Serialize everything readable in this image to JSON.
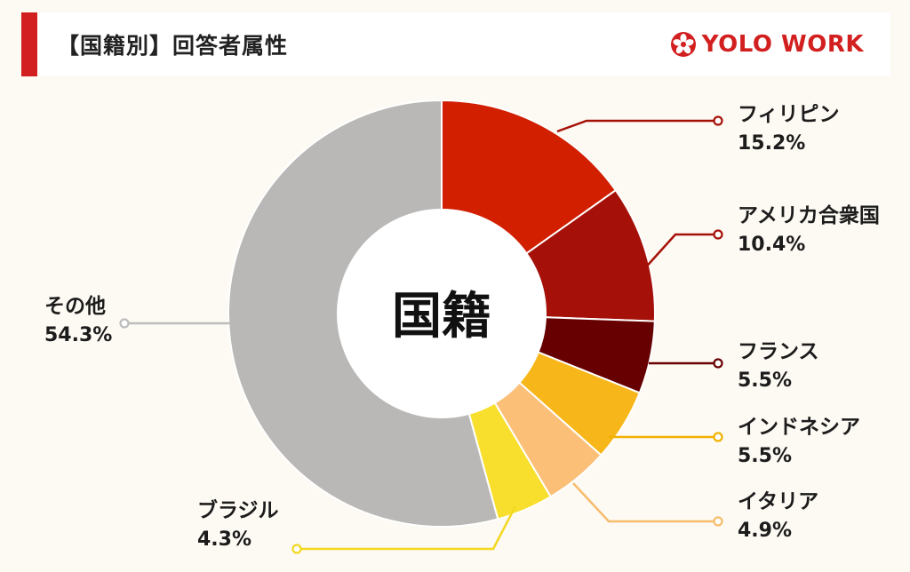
{
  "header": {
    "title": "【国籍別】回答者属性",
    "logo_text": "YOLO WORK",
    "accent_color": "#d21f1f"
  },
  "chart_data": {
    "type": "pie",
    "center_label": "国籍",
    "unit": "%",
    "slices": [
      {
        "label": "フィリピン",
        "value": 15.2,
        "display": "15.2%",
        "color": "#d11f00"
      },
      {
        "label": "アメリカ合衆国",
        "value": 10.4,
        "display": "10.4%",
        "color": "#a51108"
      },
      {
        "label": "フランス",
        "value": 5.5,
        "display": "5.5%",
        "color": "#670000"
      },
      {
        "label": "インドネシア",
        "value": 5.5,
        "display": "5.5%",
        "color": "#f7b71b"
      },
      {
        "label": "イタリア",
        "value": 4.9,
        "display": "4.9%",
        "color": "#fbbf78"
      },
      {
        "label": "ブラジル",
        "value": 4.3,
        "display": "4.3%",
        "color": "#f8df2e"
      },
      {
        "label": "その他",
        "value": 54.3,
        "display": "54.3%",
        "color": "#bab8b7"
      }
    ]
  }
}
